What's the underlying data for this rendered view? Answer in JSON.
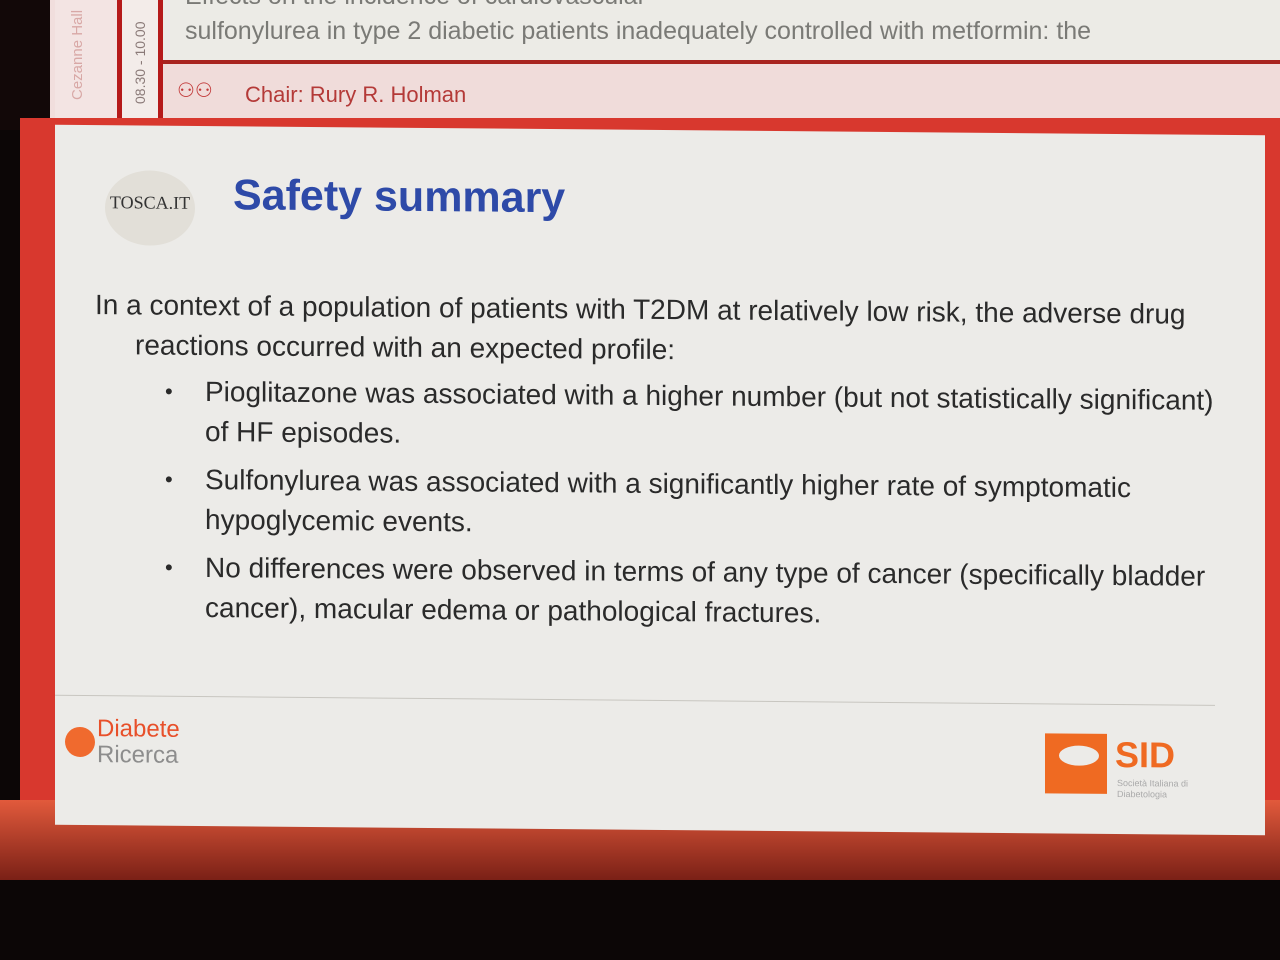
{
  "session_banner": {
    "room": "Cezanne Hall",
    "time": "08.30 - 10.00",
    "talk_title_line1": "Effects on the incidence of cardiovascular",
    "talk_title_line2": "sulfonylurea in type 2 diabetic patients inadequately controlled with metformin: the",
    "chair": "Chair: Rury R. Holman",
    "chair_icon": "people-at-table-icon"
  },
  "slide": {
    "logo_text": "TOSCA.IT",
    "title": "Safety summary",
    "intro": "In a context of a population of patients with T2DM at relatively low risk, the adverse drug reactions occurred with an expected profile:",
    "bullets": [
      "Pioglitazone was associated with a higher number (but not statistically significant) of HF episodes.",
      "Sulfonylurea was associated with a significantly higher rate of symptomatic hypoglycemic events.",
      "No differences were observed in terms of any type of cancer (specifically bladder cancer), macular edema or pathological fractures."
    ],
    "footer_left_line1": "Diabete",
    "footer_left_line2": "Ricerca",
    "footer_right": "SID",
    "footer_right_sub": "Società Italiana di Diabetologia"
  },
  "colors": {
    "title_blue": "#2e4aa8",
    "frame_red": "#d8382e",
    "sid_orange": "#ef6a22"
  }
}
